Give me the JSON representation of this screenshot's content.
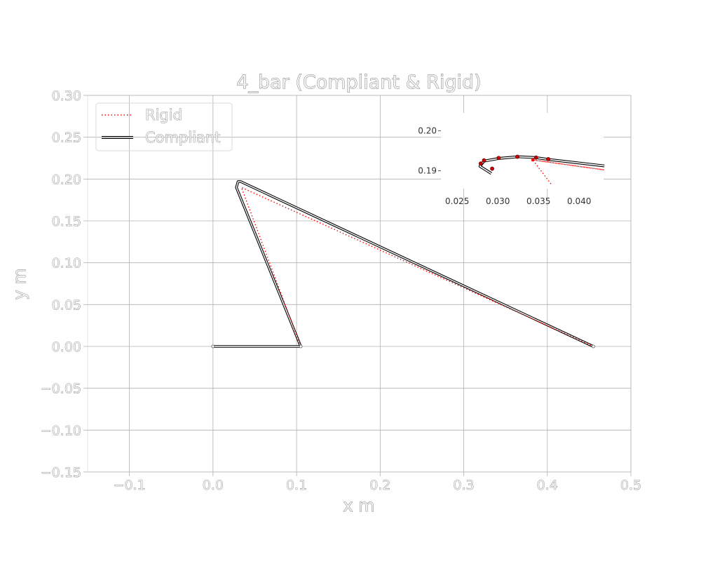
{
  "chart_data": {
    "type": "line",
    "title": "4_bar (Compliant & Rigid)",
    "xlabel": "x m",
    "ylabel": "y m",
    "xlim": [
      -0.15,
      0.5
    ],
    "ylim": [
      -0.15,
      0.3
    ],
    "xticks": [
      -0.1,
      0.0,
      0.1,
      0.2,
      0.3,
      0.4,
      0.5
    ],
    "xtick_labels": [
      "−0.1",
      "0.0",
      "0.1",
      "0.2",
      "0.3",
      "0.4",
      "0.5"
    ],
    "yticks": [
      -0.15,
      -0.1,
      -0.05,
      0.0,
      0.05,
      0.1,
      0.15,
      0.2,
      0.25,
      0.3
    ],
    "ytick_labels": [
      "−0.15",
      "−0.10",
      "−0.05",
      "0.00",
      "0.05",
      "0.10",
      "0.15",
      "0.20",
      "0.25",
      "0.30"
    ],
    "grid": true,
    "legend_position": "top-left",
    "series": [
      {
        "name": "Rigid",
        "style": "dotted",
        "color": "#ff0000",
        "x": [
          0.105,
          0.034,
          0.455
        ],
        "y": [
          0.0,
          0.19,
          0.0
        ]
      },
      {
        "name": "Compliant",
        "style": "double-line",
        "color": "#000000",
        "x": [
          0.0,
          0.105,
          0.028,
          0.03,
          0.033,
          0.455
        ],
        "y": [
          0.0,
          0.0,
          0.19,
          0.197,
          0.197,
          0.0
        ]
      }
    ],
    "inset": {
      "xlim": [
        0.023,
        0.043
      ],
      "ylim": [
        0.1855,
        0.2045
      ],
      "xticks": [
        0.025,
        0.03,
        0.035,
        0.04
      ],
      "xtick_labels": [
        "0.025",
        "0.030",
        "0.035",
        "0.040"
      ],
      "yticks": [
        0.19,
        0.2
      ],
      "ytick_labels": [
        "0.19",
        "0.20"
      ],
      "compliant_x": [
        0.0292,
        0.0278,
        0.0283,
        0.0302,
        0.0325,
        0.0346,
        0.0363,
        0.0431
      ],
      "compliant_y": [
        0.1893,
        0.1911,
        0.1924,
        0.1931,
        0.1935,
        0.1933,
        0.1928,
        0.1912
      ],
      "marker_x": [
        0.0293,
        0.0279,
        0.0283,
        0.0301,
        0.0324,
        0.0347,
        0.0362
      ],
      "marker_y": [
        0.1905,
        0.1918,
        0.1926,
        0.1932,
        0.1935,
        0.1933,
        0.1929
      ],
      "rigid_x": [
        0.0343,
        0.0431,
        0.0343,
        0.0366
      ],
      "rigid_y": [
        0.1927,
        0.1902,
        0.1927,
        0.1865
      ]
    }
  }
}
